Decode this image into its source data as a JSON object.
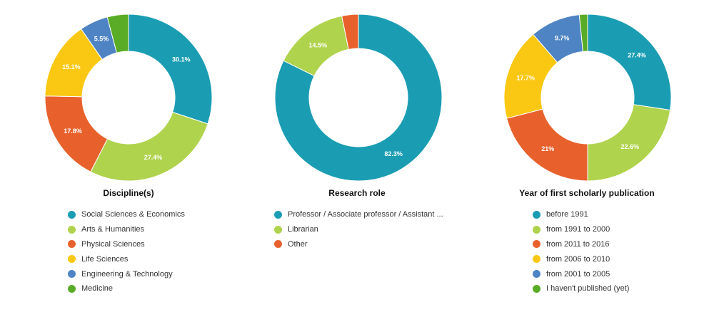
{
  "chart_data": [
    {
      "type": "pie",
      "title": "Discipline(s)",
      "categories": [
        "Social Sciences & Economics",
        "Arts & Humanities",
        "Physical Sciences",
        "Life Sciences",
        "Engineering & Technology",
        "Medicine"
      ],
      "values": [
        30.1,
        27.4,
        17.8,
        15.1,
        5.5,
        4.1
      ],
      "labels": [
        "30.1%",
        "27.4%",
        "17.8%",
        "15.1%",
        "5.5%",
        ""
      ],
      "colors": [
        "#1a9db3",
        "#afd34c",
        "#e8612c",
        "#fac712",
        "#4e84c4",
        "#5aab25"
      ],
      "legend": "bottom"
    },
    {
      "type": "pie",
      "title": "Research role",
      "categories": [
        "Professor / Associate professor / Assistant ...",
        "Librarian",
        "Other"
      ],
      "values": [
        82.3,
        14.5,
        3.2
      ],
      "labels": [
        "82.3%",
        "14.5%",
        ""
      ],
      "colors": [
        "#1a9db3",
        "#afd34c",
        "#e8612c"
      ],
      "legend": "bottom"
    },
    {
      "type": "pie",
      "title": "Year of first scholarly publication",
      "categories": [
        "before 1991",
        "from 1991 to 2000",
        "from 2011 to 2016",
        "from 2006 to 2010",
        "from 2001 to 2005",
        "I haven't published (yet)"
      ],
      "values": [
        27.4,
        22.6,
        21,
        17.7,
        9.7,
        1.6
      ],
      "labels": [
        "27.4%",
        "22.6%",
        "21%",
        "17.7%",
        "9.7%",
        ""
      ],
      "colors": [
        "#1a9db3",
        "#afd34c",
        "#e8612c",
        "#fac712",
        "#4e84c4",
        "#5aab25"
      ],
      "legend": "bottom"
    }
  ]
}
